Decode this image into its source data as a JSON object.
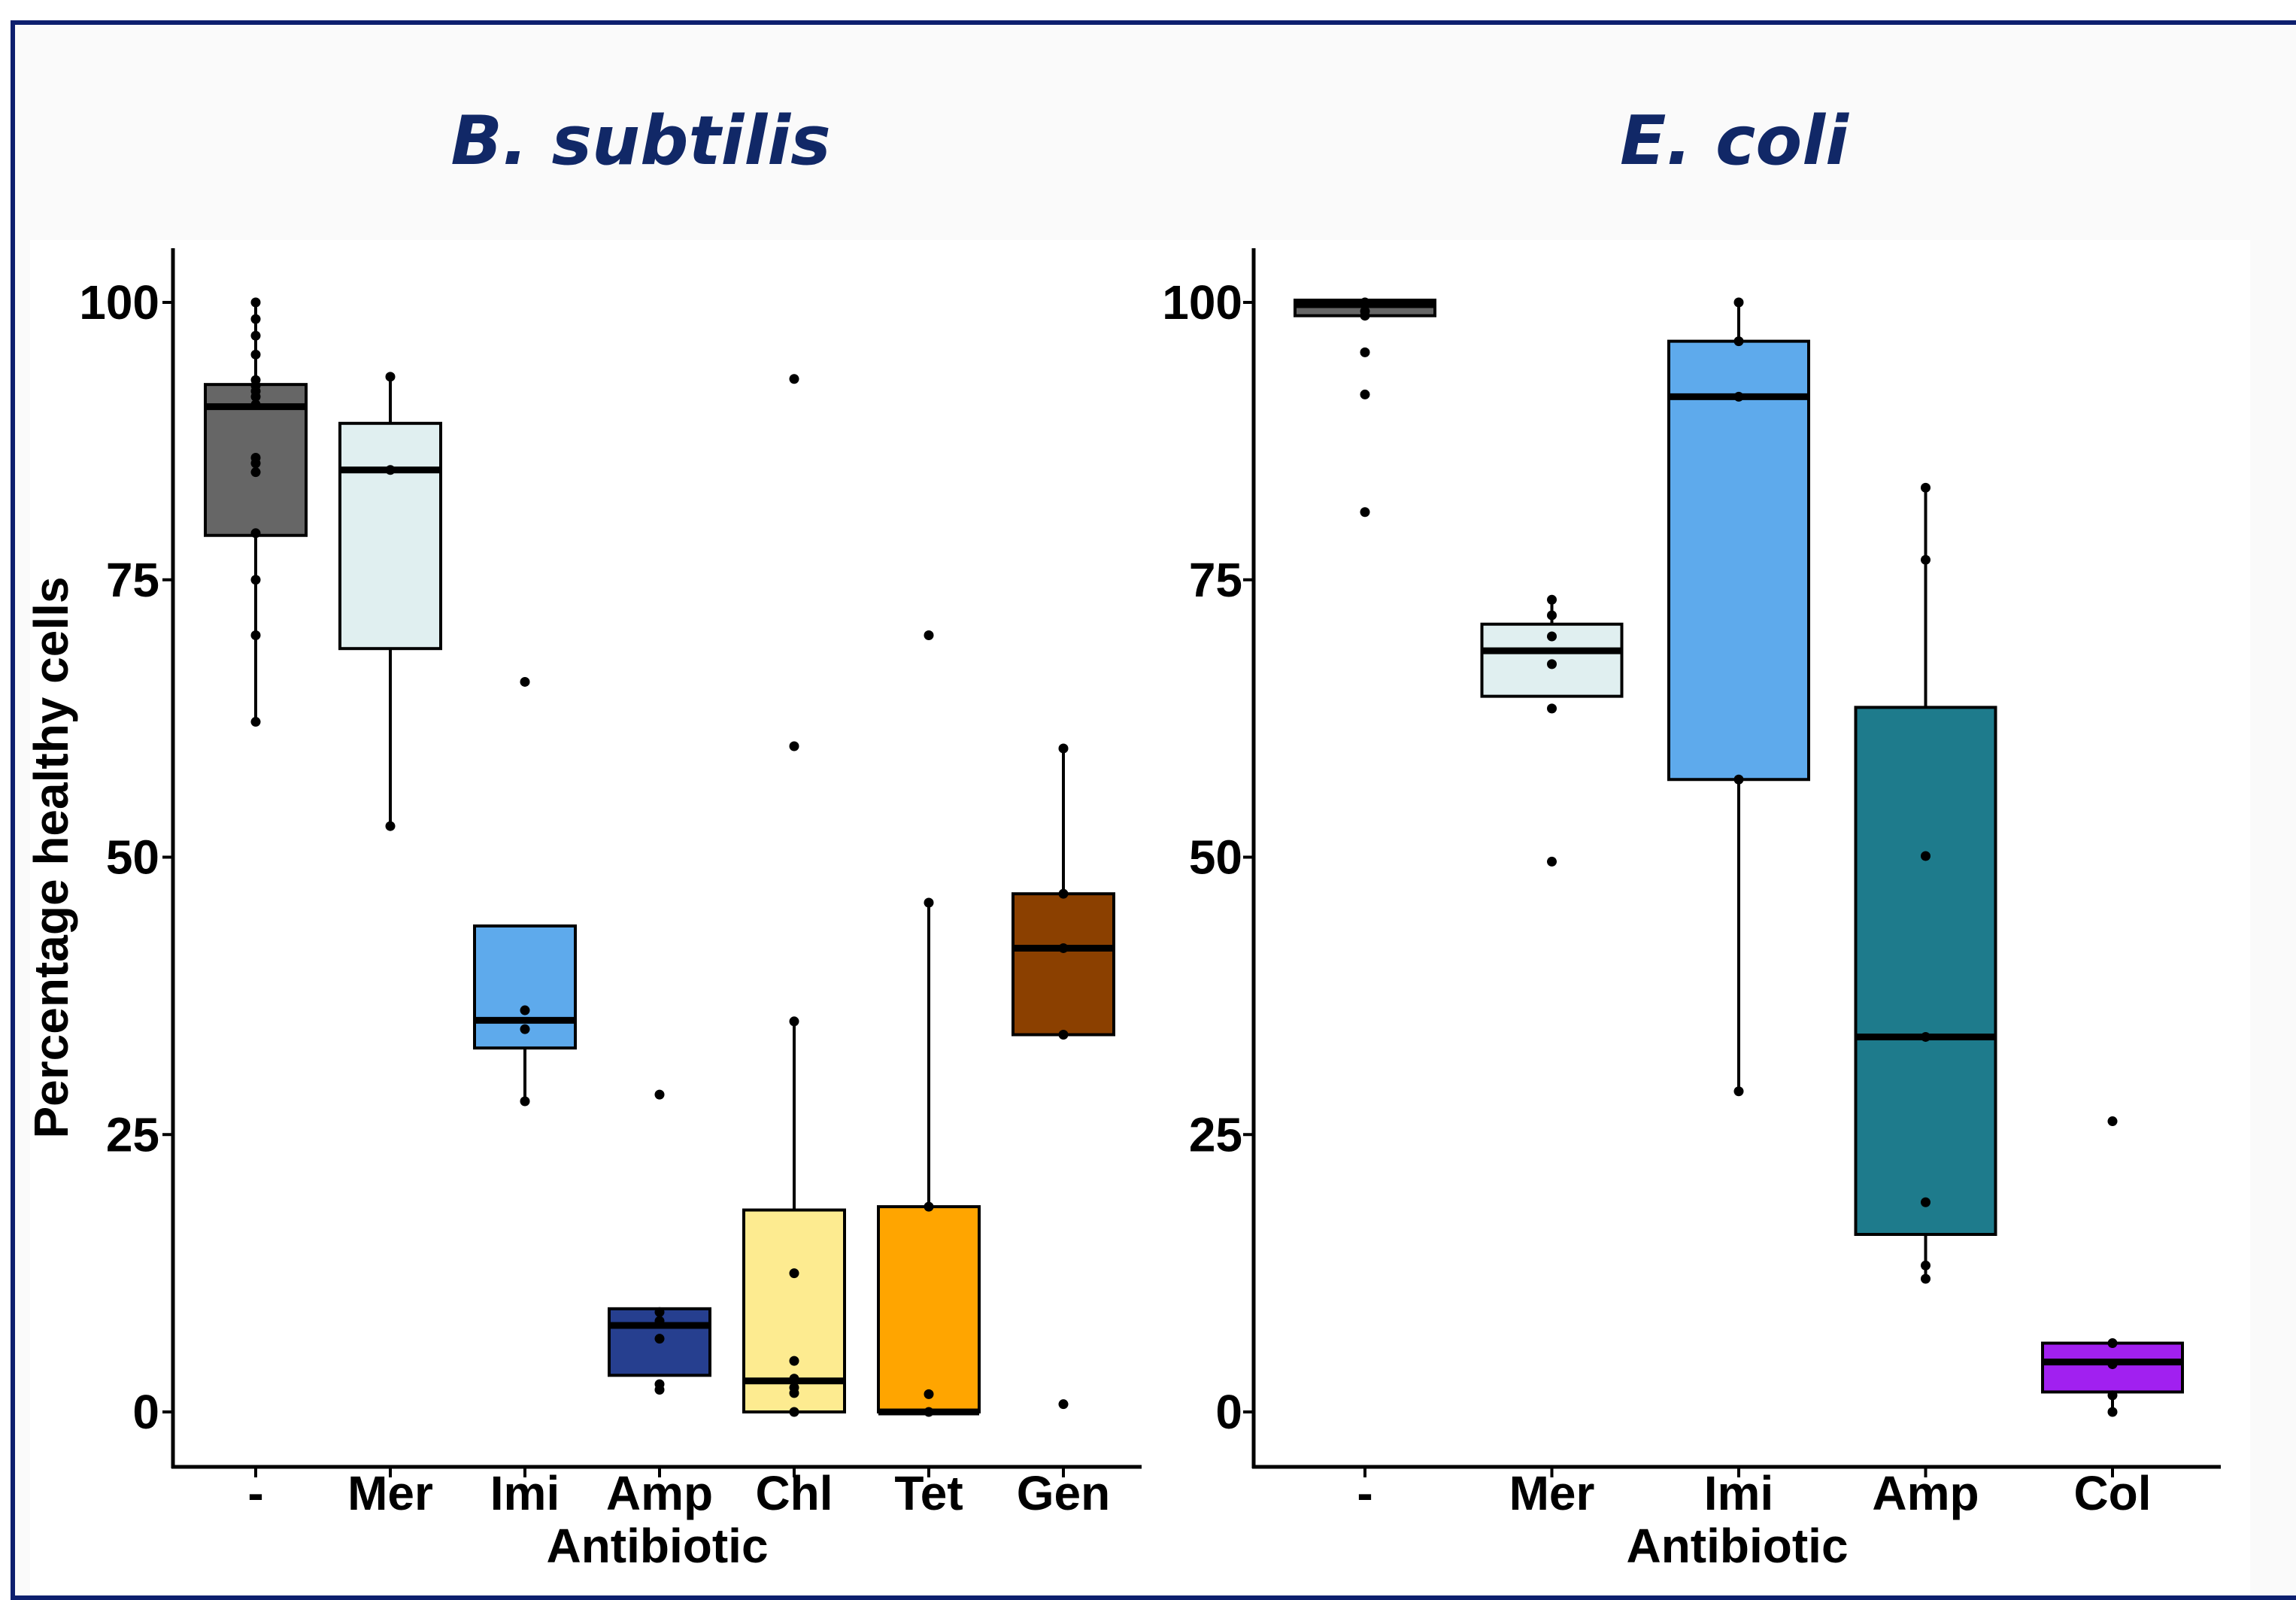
{
  "chart_data": [
    {
      "type": "boxplot",
      "title": "B. subtilis",
      "xlabel": "Antibiotic",
      "ylabel": "Percentage healthy cells",
      "ylim": [
        -5,
        105
      ],
      "yticks": [
        0,
        25,
        50,
        75,
        100
      ],
      "grid": false,
      "categories": [
        "-",
        "Mer",
        "Imi",
        "Amp",
        "Chl",
        "Tet",
        "Gen"
      ],
      "boxes": [
        {
          "category": "-",
          "color": "#666666",
          "q1": 79,
          "median": 90.6,
          "q3": 92.6,
          "whisker_low": 62.2,
          "whisker_high": 100,
          "outliers": [],
          "points": [
            100,
            98.5,
            97,
            95.3,
            93,
            92.5,
            92,
            91.5,
            90.8,
            86,
            85.5,
            84.7,
            79.2,
            75,
            70,
            62.2
          ]
        },
        {
          "category": "Mer",
          "color": "#e0eff0",
          "q1": 68.8,
          "median": 84.9,
          "q3": 89.1,
          "whisker_low": 52.8,
          "whisker_high": 93.3,
          "outliers": [],
          "points": [
            93.3,
            84.9,
            52.8
          ]
        },
        {
          "category": "Imi",
          "color": "#5eaaec",
          "q1": 32.8,
          "median": 35.3,
          "q3": 43.8,
          "whisker_low": 28,
          "whisker_high": 43.8,
          "outliers": [
            65.8
          ],
          "points": [
            65.8,
            36.2,
            34.5,
            28
          ]
        },
        {
          "category": "Amp",
          "color": "#263f8f",
          "q1": 3.3,
          "median": 7.8,
          "q3": 9.3,
          "whisker_low": 3.3,
          "whisker_high": 9.3,
          "outliers": [
            28.6,
            2.2
          ],
          "points": [
            28.6,
            9.0,
            8.2,
            6.6,
            2.5,
            2.0
          ]
        },
        {
          "category": "Chl",
          "color": "#fdeb90",
          "q1": 0,
          "median": 2.8,
          "q3": 18.2,
          "whisker_low": 0,
          "whisker_high": 35.2,
          "outliers": [
            93.1,
            60.0
          ],
          "points": [
            93.1,
            60.0,
            35.2,
            12.5,
            4.6,
            3.0,
            2.2,
            1.7,
            0
          ]
        },
        {
          "category": "Tet",
          "color": "#ffa500",
          "q1": 0,
          "median": 0,
          "q3": 18.5,
          "whisker_low": 0,
          "whisker_high": 45.9,
          "outliers": [
            70.0
          ],
          "points": [
            70.0,
            45.9,
            18.5,
            1.6,
            0
          ]
        },
        {
          "category": "Gen",
          "color": "#8b4000",
          "q1": 34,
          "median": 41.8,
          "q3": 46.7,
          "whisker_low": 34,
          "whisker_high": 59.8,
          "outliers": [
            0.7
          ],
          "points": [
            59.8,
            46.7,
            41.8,
            34,
            0.7
          ]
        }
      ]
    },
    {
      "type": "boxplot",
      "title": "E. coli",
      "xlabel": "Antibiotic",
      "ylabel": "",
      "ylim": [
        -5,
        105
      ],
      "yticks": [
        0,
        25,
        50,
        75,
        100
      ],
      "grid": false,
      "categories": [
        "-",
        "Mer",
        "Imi",
        "Amp",
        "Col"
      ],
      "boxes": [
        {
          "category": "-",
          "color": "#666666",
          "q1": 98.8,
          "median": 99.8,
          "q3": 100.2,
          "whisker_low": 98.8,
          "whisker_high": 100.2,
          "outliers": [
            95.5,
            91.7,
            81.1
          ],
          "points": [
            100,
            99.2,
            98.8,
            95.5,
            91.7,
            81.1
          ]
        },
        {
          "category": "Mer",
          "color": "#e0eff0",
          "q1": 64.5,
          "median": 68.6,
          "q3": 71.0,
          "whisker_low": 64.5,
          "whisker_high": 73.2,
          "outliers": [
            49.6
          ],
          "points": [
            73.2,
            71.8,
            69.9,
            67.4,
            63.4,
            49.6
          ]
        },
        {
          "category": "Imi",
          "color": "#5eaaec",
          "q1": 57,
          "median": 91.5,
          "q3": 96.5,
          "whisker_low": 28.9,
          "whisker_high": 100,
          "outliers": [],
          "points": [
            100,
            96.5,
            91.5,
            57,
            28.9
          ]
        },
        {
          "category": "Amp",
          "color": "#1e7b8c",
          "q1": 16,
          "median": 33.8,
          "q3": 63.5,
          "whisker_low": 12,
          "whisker_high": 83.3,
          "outliers": [],
          "points": [
            83.3,
            76.8,
            50.1,
            33.8,
            18.9,
            13.2,
            12
          ]
        },
        {
          "category": "Col",
          "color": "#a120f0",
          "q1": 1.8,
          "median": 4.5,
          "q3": 6.2,
          "whisker_low": 0,
          "whisker_high": 6.2,
          "outliers": [
            26.2
          ],
          "points": [
            26.2,
            6.2,
            4.3,
            1.5,
            0
          ]
        }
      ]
    }
  ]
}
